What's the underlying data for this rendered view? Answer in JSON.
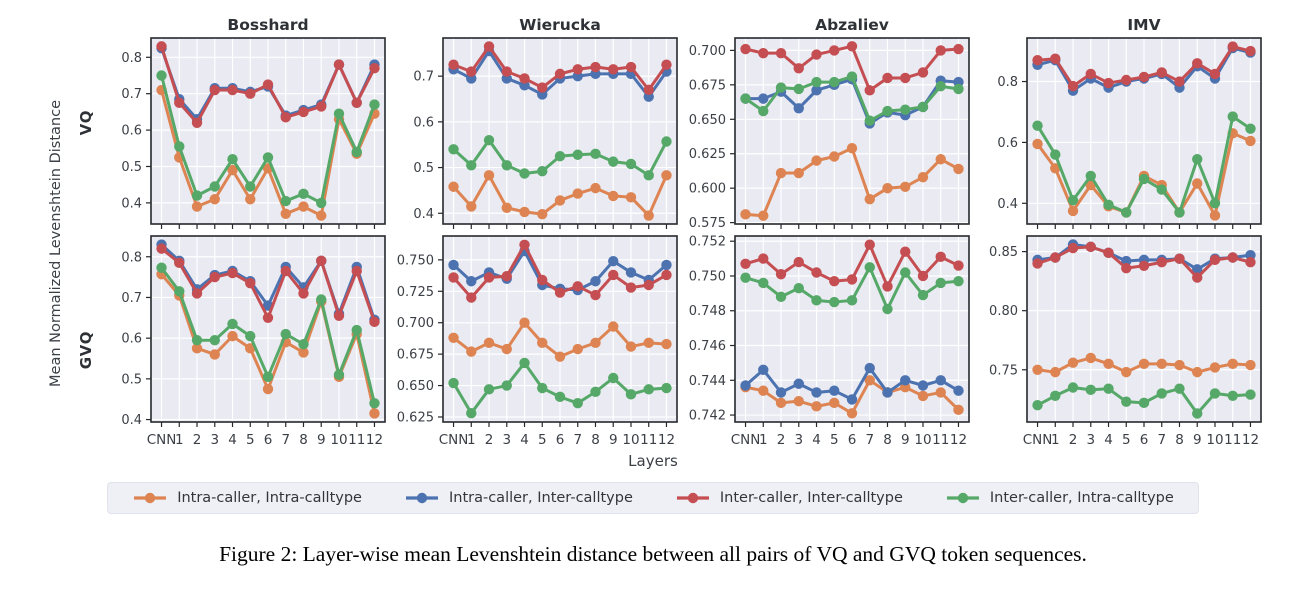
{
  "figure": {
    "ylabel": "Mean Normalized Levenshtein Distance",
    "xlabel": "Layers",
    "row_labels": [
      "VQ",
      "GVQ"
    ],
    "col_titles": [
      "Bosshard",
      "Wierucka",
      "Abzaliev",
      "IMV"
    ],
    "x_categories": [
      "CNN",
      "1",
      "2",
      "3",
      "4",
      "5",
      "6",
      "7",
      "8",
      "9",
      "10",
      "11",
      "12"
    ],
    "legend": [
      {
        "label": "Intra-caller, Intra-calltype",
        "color": "#DD8452"
      },
      {
        "label": "Intra-caller, Inter-calltype",
        "color": "#4C72B0"
      },
      {
        "label": "Inter-caller, Inter-calltype",
        "color": "#C44E52"
      },
      {
        "label": "Inter-caller, Intra-calltype",
        "color": "#55A868"
      }
    ],
    "caption": "Figure 2: Layer-wise mean Levenshtein distance between all pairs of VQ and GVQ token sequences."
  },
  "theme": {
    "page_bg": "#FFFFFF",
    "plot_bg": "#E9EAF2",
    "grid": "#FFFFFF",
    "spine": "#26282D",
    "tick_label": "#3B3F46",
    "title": "#2E3236",
    "legend_bg": "#EEF0F5",
    "legend_border": "#E0E3EB"
  },
  "chart_data": [
    {
      "type": "line",
      "row": "VQ",
      "title": "Bosshard",
      "show_title": true,
      "show_xticklabels": false,
      "ylim": [
        0.342,
        0.853
      ],
      "yticks": [
        0.4,
        0.5,
        0.6,
        0.7,
        0.8
      ],
      "ytick_labels": [
        "0.4",
        "0.5",
        "0.6",
        "0.7",
        "0.8"
      ],
      "series": [
        {
          "name": "Intra-caller, Intra-calltype",
          "values": [
            0.71,
            0.525,
            0.39,
            0.41,
            0.49,
            0.41,
            0.495,
            0.37,
            0.39,
            0.365,
            0.63,
            0.535,
            0.645
          ]
        },
        {
          "name": "Intra-caller, Inter-calltype",
          "values": [
            0.825,
            0.685,
            0.63,
            0.715,
            0.715,
            0.705,
            0.72,
            0.64,
            0.655,
            0.67,
            0.78,
            0.675,
            0.78
          ]
        },
        {
          "name": "Inter-caller, Inter-calltype",
          "values": [
            0.83,
            0.675,
            0.62,
            0.71,
            0.71,
            0.7,
            0.725,
            0.635,
            0.65,
            0.665,
            0.78,
            0.675,
            0.77
          ]
        },
        {
          "name": "Inter-caller, Intra-calltype",
          "values": [
            0.75,
            0.555,
            0.42,
            0.445,
            0.52,
            0.445,
            0.525,
            0.405,
            0.425,
            0.4,
            0.645,
            0.54,
            0.67
          ]
        }
      ]
    },
    {
      "type": "line",
      "row": "VQ",
      "title": "Wierucka",
      "show_title": true,
      "show_xticklabels": false,
      "ylim": [
        0.3765,
        0.7835
      ],
      "yticks": [
        0.4,
        0.5,
        0.6,
        0.7
      ],
      "ytick_labels": [
        "0.4",
        "0.5",
        "0.6",
        "0.7"
      ],
      "series": [
        {
          "name": "Intra-caller, Intra-calltype",
          "values": [
            0.458,
            0.415,
            0.483,
            0.412,
            0.403,
            0.398,
            0.428,
            0.443,
            0.455,
            0.438,
            0.435,
            0.395,
            0.483
          ]
        },
        {
          "name": "Intra-caller, Inter-calltype",
          "values": [
            0.715,
            0.695,
            0.755,
            0.695,
            0.68,
            0.66,
            0.695,
            0.7,
            0.705,
            0.705,
            0.705,
            0.655,
            0.71
          ]
        },
        {
          "name": "Inter-caller, Inter-calltype",
          "values": [
            0.725,
            0.71,
            0.765,
            0.71,
            0.695,
            0.675,
            0.705,
            0.715,
            0.72,
            0.715,
            0.72,
            0.67,
            0.725
          ]
        },
        {
          "name": "Inter-caller, Intra-calltype",
          "values": [
            0.54,
            0.505,
            0.56,
            0.505,
            0.487,
            0.492,
            0.525,
            0.528,
            0.53,
            0.513,
            0.508,
            0.483,
            0.557
          ]
        }
      ]
    },
    {
      "type": "line",
      "row": "VQ",
      "title": "Abzaliev",
      "show_title": true,
      "show_xticklabels": false,
      "ylim": [
        0.574,
        0.709
      ],
      "yticks": [
        0.575,
        0.6,
        0.625,
        0.65,
        0.675,
        0.7
      ],
      "ytick_labels": [
        "0.575",
        "0.600",
        "0.625",
        "0.650",
        "0.675",
        "0.700"
      ],
      "series": [
        {
          "name": "Intra-caller, Intra-calltype",
          "values": [
            0.581,
            0.58,
            0.611,
            0.611,
            0.62,
            0.623,
            0.629,
            0.592,
            0.6,
            0.601,
            0.608,
            0.621,
            0.614
          ]
        },
        {
          "name": "Intra-caller, Inter-calltype",
          "values": [
            0.665,
            0.665,
            0.67,
            0.658,
            0.671,
            0.675,
            0.679,
            0.647,
            0.655,
            0.653,
            0.659,
            0.678,
            0.677
          ]
        },
        {
          "name": "Inter-caller, Inter-calltype",
          "values": [
            0.701,
            0.698,
            0.698,
            0.687,
            0.697,
            0.7,
            0.703,
            0.671,
            0.68,
            0.68,
            0.684,
            0.7,
            0.701
          ]
        },
        {
          "name": "Inter-caller, Intra-calltype",
          "values": [
            0.665,
            0.656,
            0.673,
            0.672,
            0.677,
            0.677,
            0.681,
            0.649,
            0.656,
            0.657,
            0.659,
            0.674,
            0.672
          ]
        }
      ]
    },
    {
      "type": "line",
      "row": "VQ",
      "title": "IMV",
      "show_title": true,
      "show_xticklabels": false,
      "ylim": [
        0.332,
        0.943
      ],
      "yticks": [
        0.4,
        0.6,
        0.8
      ],
      "ytick_labels": [
        "0.4",
        "0.6",
        "0.8"
      ],
      "series": [
        {
          "name": "Intra-caller, Intra-calltype",
          "values": [
            0.595,
            0.515,
            0.375,
            0.46,
            0.39,
            0.37,
            0.49,
            0.46,
            0.37,
            0.465,
            0.36,
            0.63,
            0.605
          ]
        },
        {
          "name": "Intra-caller, Inter-calltype",
          "values": [
            0.855,
            0.87,
            0.77,
            0.81,
            0.78,
            0.8,
            0.81,
            0.825,
            0.78,
            0.85,
            0.81,
            0.91,
            0.895
          ]
        },
        {
          "name": "Inter-caller, Inter-calltype",
          "values": [
            0.87,
            0.875,
            0.785,
            0.825,
            0.795,
            0.805,
            0.815,
            0.83,
            0.8,
            0.86,
            0.825,
            0.915,
            0.9
          ]
        },
        {
          "name": "Inter-caller, Intra-calltype",
          "values": [
            0.655,
            0.56,
            0.41,
            0.49,
            0.395,
            0.37,
            0.48,
            0.445,
            0.37,
            0.545,
            0.4,
            0.685,
            0.645
          ]
        }
      ]
    },
    {
      "type": "line",
      "row": "GVQ",
      "title": "Bosshard",
      "show_title": false,
      "show_xticklabels": true,
      "ylim": [
        0.394,
        0.851
      ],
      "yticks": [
        0.4,
        0.5,
        0.6,
        0.7,
        0.8
      ],
      "ytick_labels": [
        "0.4",
        "0.5",
        "0.6",
        "0.7",
        "0.8"
      ],
      "series": [
        {
          "name": "Intra-caller, Intra-calltype",
          "values": [
            0.757,
            0.705,
            0.575,
            0.56,
            0.605,
            0.575,
            0.475,
            0.59,
            0.565,
            0.69,
            0.505,
            0.61,
            0.415
          ]
        },
        {
          "name": "Intra-caller, Inter-calltype",
          "values": [
            0.83,
            0.79,
            0.72,
            0.755,
            0.765,
            0.74,
            0.68,
            0.775,
            0.725,
            0.79,
            0.66,
            0.775,
            0.645
          ]
        },
        {
          "name": "Inter-caller, Inter-calltype",
          "values": [
            0.82,
            0.785,
            0.71,
            0.75,
            0.76,
            0.735,
            0.65,
            0.765,
            0.71,
            0.79,
            0.655,
            0.765,
            0.64
          ]
        },
        {
          "name": "Inter-caller, Intra-calltype",
          "values": [
            0.773,
            0.715,
            0.595,
            0.595,
            0.635,
            0.605,
            0.505,
            0.61,
            0.585,
            0.695,
            0.51,
            0.62,
            0.44
          ]
        }
      ]
    },
    {
      "type": "line",
      "row": "GVQ",
      "title": "Wierucka",
      "show_title": false,
      "show_xticklabels": true,
      "ylim": [
        0.621,
        0.769
      ],
      "yticks": [
        0.625,
        0.65,
        0.675,
        0.7,
        0.725,
        0.75
      ],
      "ytick_labels": [
        "0.625",
        "0.650",
        "0.675",
        "0.700",
        "0.725",
        "0.750"
      ],
      "series": [
        {
          "name": "Intra-caller, Intra-calltype",
          "values": [
            0.688,
            0.677,
            0.684,
            0.679,
            0.7,
            0.684,
            0.673,
            0.679,
            0.684,
            0.697,
            0.681,
            0.684,
            0.683
          ]
        },
        {
          "name": "Intra-caller, Inter-calltype",
          "values": [
            0.746,
            0.733,
            0.74,
            0.735,
            0.757,
            0.73,
            0.727,
            0.726,
            0.733,
            0.749,
            0.74,
            0.734,
            0.746
          ]
        },
        {
          "name": "Inter-caller, Inter-calltype",
          "values": [
            0.736,
            0.72,
            0.736,
            0.737,
            0.762,
            0.734,
            0.724,
            0.729,
            0.722,
            0.738,
            0.728,
            0.73,
            0.738
          ]
        },
        {
          "name": "Inter-caller, Intra-calltype",
          "values": [
            0.652,
            0.628,
            0.647,
            0.65,
            0.668,
            0.648,
            0.641,
            0.636,
            0.645,
            0.656,
            0.643,
            0.647,
            0.648
          ]
        }
      ]
    },
    {
      "type": "line",
      "row": "GVQ",
      "title": "Abzaliev",
      "show_title": false,
      "show_xticklabels": true,
      "ylim": [
        0.7416,
        0.7523
      ],
      "yticks": [
        0.742,
        0.744,
        0.746,
        0.748,
        0.75,
        0.752
      ],
      "ytick_labels": [
        "0.742",
        "0.744",
        "0.746",
        "0.748",
        "0.750",
        "0.752"
      ],
      "series": [
        {
          "name": "Intra-caller, Intra-calltype",
          "values": [
            0.7436,
            0.7434,
            0.7427,
            0.7428,
            0.7425,
            0.7427,
            0.7421,
            0.744,
            0.7433,
            0.7436,
            0.7431,
            0.7433,
            0.7423
          ]
        },
        {
          "name": "Intra-caller, Inter-calltype",
          "values": [
            0.7437,
            0.7446,
            0.7433,
            0.7438,
            0.7433,
            0.7434,
            0.7429,
            0.7447,
            0.7433,
            0.744,
            0.7437,
            0.744,
            0.7434
          ]
        },
        {
          "name": "Inter-caller, Inter-calltype",
          "values": [
            0.7507,
            0.751,
            0.7501,
            0.7508,
            0.7502,
            0.7497,
            0.7498,
            0.7518,
            0.7494,
            0.7514,
            0.75,
            0.7511,
            0.7506
          ]
        },
        {
          "name": "Inter-caller, Intra-calltype",
          "values": [
            0.7499,
            0.7496,
            0.7488,
            0.7493,
            0.7486,
            0.7485,
            0.7486,
            0.7505,
            0.7481,
            0.7502,
            0.7489,
            0.7496,
            0.7497
          ]
        }
      ]
    },
    {
      "type": "line",
      "row": "GVQ",
      "title": "IMV",
      "show_title": false,
      "show_xticklabels": true,
      "ylim": [
        0.7058,
        0.8632
      ],
      "yticks": [
        0.75,
        0.8,
        0.85
      ],
      "ytick_labels": [
        "0.75",
        "0.80",
        "0.85"
      ],
      "series": [
        {
          "name": "Intra-caller, Intra-calltype",
          "values": [
            0.75,
            0.748,
            0.756,
            0.76,
            0.755,
            0.748,
            0.755,
            0.755,
            0.754,
            0.748,
            0.752,
            0.755,
            0.754
          ]
        },
        {
          "name": "Intra-caller, Inter-calltype",
          "values": [
            0.843,
            0.845,
            0.856,
            0.854,
            0.849,
            0.842,
            0.843,
            0.843,
            0.844,
            0.835,
            0.844,
            0.845,
            0.847
          ]
        },
        {
          "name": "Inter-caller, Inter-calltype",
          "values": [
            0.84,
            0.845,
            0.853,
            0.854,
            0.849,
            0.836,
            0.838,
            0.841,
            0.844,
            0.828,
            0.843,
            0.845,
            0.841
          ]
        },
        {
          "name": "Inter-caller, Intra-calltype",
          "values": [
            0.72,
            0.728,
            0.735,
            0.733,
            0.734,
            0.723,
            0.722,
            0.73,
            0.734,
            0.713,
            0.73,
            0.728,
            0.729
          ]
        }
      ]
    }
  ]
}
